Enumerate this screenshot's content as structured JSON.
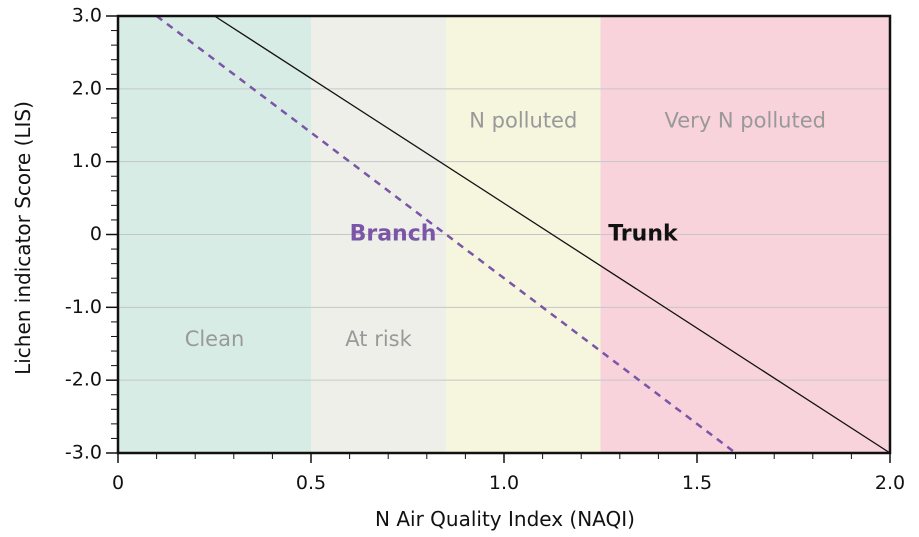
{
  "chart_data": {
    "type": "line",
    "xlabel": "N Air Quality Index (NAQI)",
    "ylabel": "Lichen indicator Score (LIS)",
    "xlim": [
      0,
      2.0
    ],
    "ylim": [
      -3.0,
      3.0
    ],
    "x_ticks": [
      0,
      0.5,
      1.0,
      1.5,
      2.0
    ],
    "x_tick_labels": [
      "0",
      "0.5",
      "1.0",
      "1.5",
      "2.0"
    ],
    "x_minor_step": 0.1,
    "y_ticks": [
      -3.0,
      -2.0,
      -1.0,
      0,
      1.0,
      2.0,
      3.0
    ],
    "y_tick_labels": [
      "-3.0",
      "-2.0",
      "-1.0",
      "0",
      "1.0",
      "2.0",
      "3.0"
    ],
    "y_minor_step": 0.2,
    "grid": true,
    "regions": [
      {
        "label": "Clean",
        "x_start": 0,
        "x_end": 0.5,
        "color": "#d8ece6",
        "label_x": 0.25,
        "label_y": -1.45
      },
      {
        "label": "At risk",
        "x_start": 0.5,
        "x_end": 0.85,
        "color": "#efefe9",
        "label_x": 0.675,
        "label_y": -1.45
      },
      {
        "label": "N polluted",
        "x_start": 0.85,
        "x_end": 1.25,
        "color": "#f6f5de",
        "label_x": 1.05,
        "label_y": 1.55
      },
      {
        "label": "Very N polluted",
        "x_start": 1.25,
        "x_end": 2.0,
        "color": "#f8d3dc",
        "label_x": 1.625,
        "label_y": 1.55
      }
    ],
    "series": [
      {
        "name": "Trunk",
        "x": [
          0.25,
          2.0
        ],
        "y": [
          3.0,
          -3.0
        ],
        "style": "solid",
        "color": "#111111",
        "label_x": 1.27,
        "label_y": 0
      },
      {
        "name": "Branch",
        "x": [
          0.1,
          1.6
        ],
        "y": [
          3.0,
          -3.0
        ],
        "style": "dashed",
        "color": "#7a55a8",
        "label_x": 0.6,
        "label_y": 0
      }
    ],
    "colors": {
      "region_label": "#999999",
      "grid": "#c6c6c6",
      "axis": "#111111"
    }
  }
}
